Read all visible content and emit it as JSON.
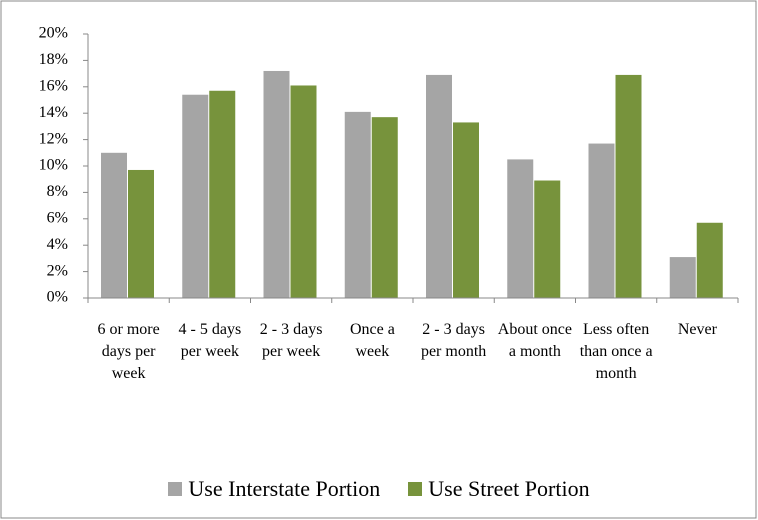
{
  "chart_data": {
    "type": "bar",
    "categories": [
      "6 or more days per week",
      "4 - 5 days per week",
      "2 - 3 days per week",
      "Once a week",
      "2 - 3 days per month",
      "About once a month",
      "Less often than once a month",
      "Never"
    ],
    "series": [
      {
        "name": "Use Interstate Portion",
        "color": "#a5a5a5",
        "values": [
          11.0,
          15.4,
          17.2,
          14.1,
          16.9,
          10.5,
          11.7,
          3.1
        ]
      },
      {
        "name": "Use Street Portion",
        "color": "#77933c",
        "values": [
          9.7,
          15.7,
          16.1,
          13.7,
          13.3,
          8.9,
          16.9,
          5.7
        ]
      }
    ],
    "ylim": [
      0,
      20
    ],
    "yticks": [
      {
        "value": 0,
        "label": "0%"
      },
      {
        "value": 2,
        "label": "2%"
      },
      {
        "value": 4,
        "label": "4%"
      },
      {
        "value": 6,
        "label": "6%"
      },
      {
        "value": 8,
        "label": "8%"
      },
      {
        "value": 10,
        "label": "10%"
      },
      {
        "value": 12,
        "label": "12%"
      },
      {
        "value": 14,
        "label": "14%"
      },
      {
        "value": 16,
        "label": "16%"
      },
      {
        "value": 18,
        "label": "18%"
      },
      {
        "value": 20,
        "label": "20%"
      }
    ],
    "grid": false,
    "legend": "bottom"
  }
}
